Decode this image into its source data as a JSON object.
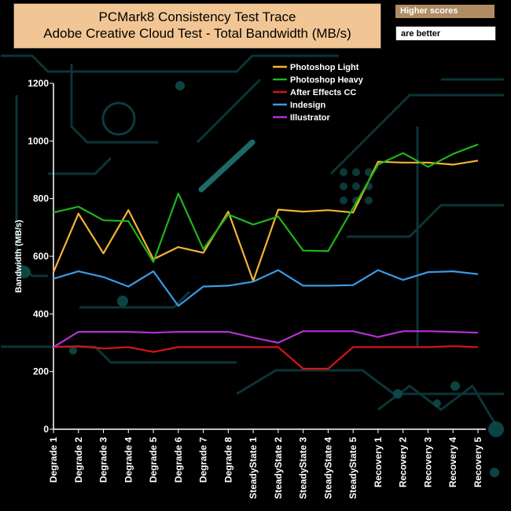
{
  "header": {
    "title_line1": "PCMark8 Consistency Test Trace",
    "title_line2": "Adobe Creative Cloud Test - Total Bandwidth (MB/s)",
    "badge_top": "Higher scores",
    "badge_bottom": "are better"
  },
  "colors": {
    "photoshop_light": "#f5b335",
    "photoshop_heavy": "#22b21c",
    "after_effects": "#d2141a",
    "indesign": "#3a9be6",
    "illustrator": "#b431cf"
  },
  "chart_data": {
    "type": "line",
    "title": "PCMark8 Consistency Test Trace\nAdobe Creative Cloud Test - Total Bandwidth (MB/s)",
    "ylabel": "Bandwidth (MB/s)",
    "xlabel": "",
    "ylim": [
      0,
      1200
    ],
    "yticks": [
      0,
      200,
      400,
      600,
      800,
      1000,
      1200
    ],
    "grid": false,
    "legend_position": "top-right",
    "categories": [
      "Degrade 1",
      "Degrade 2",
      "Degrade 3",
      "Degrade 4",
      "Degrade 5",
      "Degrade 6",
      "Degrade 7",
      "Degrade 8",
      "SteadyState 1",
      "SteadyState 2",
      "SteadyState 3",
      "SteadyState 4",
      "SteadyState 5",
      "Recovery 1",
      "Recovery 2",
      "Recovery 3",
      "Recovery 4",
      "Recovery 5"
    ],
    "series": [
      {
        "name": "Photoshop Light",
        "color": "#f5b335",
        "values": [
          545,
          748,
          610,
          760,
          590,
          632,
          612,
          755,
          515,
          762,
          755,
          760,
          752,
          928,
          925,
          925,
          918,
          932
        ]
      },
      {
        "name": " Photoshop Heavy",
        "color": "#22b21c",
        "values": [
          752,
          772,
          725,
          722,
          580,
          818,
          625,
          745,
          710,
          738,
          620,
          618,
          768,
          918,
          958,
          910,
          955,
          988
        ]
      },
      {
        "name": "After Effects CC",
        "color": "#d2141a",
        "values": [
          285,
          288,
          280,
          285,
          268,
          285,
          285,
          285,
          285,
          285,
          210,
          210,
          285,
          285,
          285,
          285,
          288,
          285
        ]
      },
      {
        "name": "Indesign",
        "color": "#3a9be6",
        "values": [
          522,
          548,
          528,
          495,
          548,
          428,
          495,
          498,
          512,
          552,
          498,
          498,
          500,
          552,
          518,
          545,
          548,
          538
        ]
      },
      {
        "name": "Illustrator",
        "color": "#b431cf",
        "values": [
          285,
          338,
          338,
          338,
          335,
          338,
          338,
          338,
          318,
          300,
          340,
          340,
          340,
          320,
          340,
          340,
          338,
          335
        ]
      }
    ]
  }
}
